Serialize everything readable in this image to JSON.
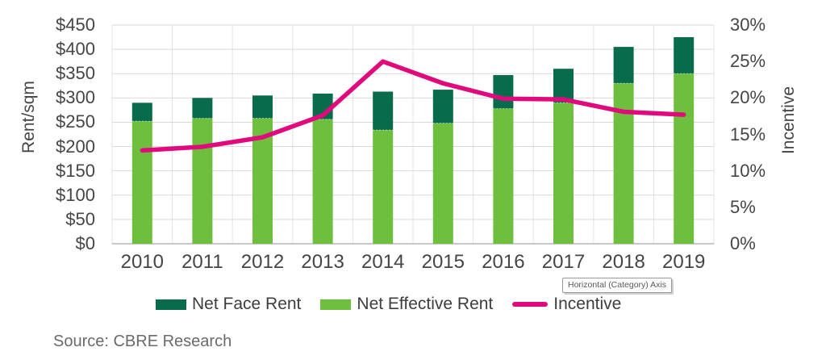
{
  "chart_data": {
    "type": "bar-line-combo",
    "categories": [
      "2010",
      "2011",
      "2012",
      "2013",
      "2014",
      "2015",
      "2016",
      "2017",
      "2018",
      "2019"
    ],
    "series": [
      {
        "name": "Net Face Rent",
        "type": "bar",
        "color": "#086b4b",
        "stack_total_values": [
          290,
          300,
          305,
          309,
          313,
          317,
          347,
          360,
          405,
          425
        ],
        "note": "dark segment drawn from Net Effective Rent top up to these totals"
      },
      {
        "name": "Net Effective Rent",
        "type": "bar",
        "color": "#6fbf3f",
        "values": [
          252,
          258,
          258,
          256,
          234,
          248,
          278,
          290,
          330,
          350
        ]
      },
      {
        "name": "Incentive",
        "type": "line",
        "color": "#e00a7d",
        "axis": "right",
        "values": [
          12.8,
          13.3,
          14.6,
          17.6,
          25.0,
          22.0,
          19.9,
          19.8,
          18.1,
          17.7
        ]
      }
    ],
    "left_axis": {
      "title": "Rent/sqm",
      "min": 0,
      "max": 450,
      "step": 50,
      "ticks": [
        "$450",
        "$400",
        "$350",
        "$300",
        "$250",
        "$200",
        "$150",
        "$100",
        "$50",
        "$0"
      ]
    },
    "right_axis": {
      "title": "Incentive",
      "min": 0,
      "max": 30,
      "step": 5,
      "ticks": [
        "30%",
        "25%",
        "20%",
        "15%",
        "10%",
        "5%",
        "0%"
      ]
    },
    "grid": {
      "horizontal": true,
      "vertical": true
    },
    "legend_position": "bottom"
  },
  "tooltip": {
    "text": "Horizontal (Category) Axis"
  },
  "source": {
    "text": "Source: CBRE Research"
  },
  "colors": {
    "grid_h": "#d9d9d9",
    "grid_v": "#e3e3e3",
    "baseline": "#b5b5b5",
    "tick_text": "#454545"
  }
}
